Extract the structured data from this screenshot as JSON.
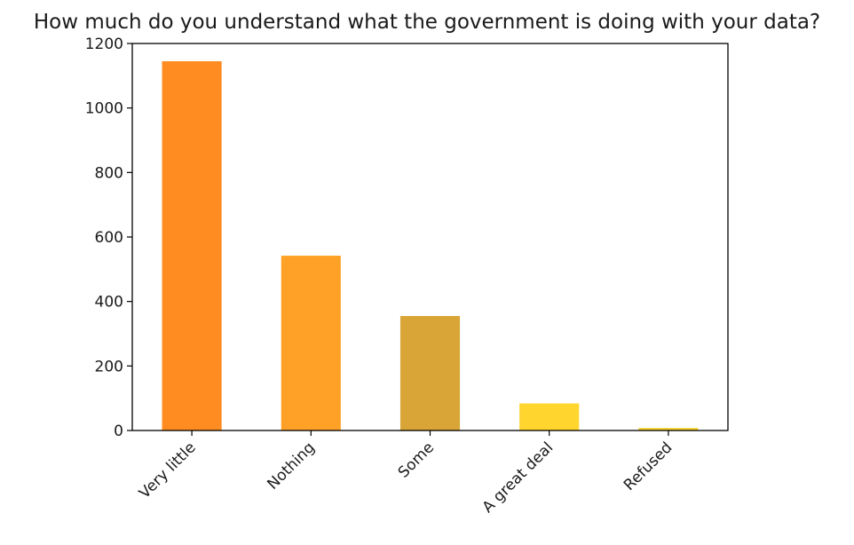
{
  "chart_data": {
    "type": "bar",
    "title": "How much do you understand what the government is doing with your data?",
    "xlabel": "",
    "ylabel": "",
    "categories": [
      "Very little",
      "Nothing",
      "Some",
      "A great deal",
      "Refused"
    ],
    "values": [
      1145,
      542,
      355,
      84,
      8
    ],
    "colors": [
      "#ff8c21",
      "#ffa126",
      "#d9a536",
      "#ffd52e",
      "#f2d12e"
    ],
    "ylim": [
      0,
      1200
    ],
    "yticks": [
      0,
      200,
      400,
      600,
      800,
      1000,
      1200
    ],
    "grid": false,
    "legend": "none"
  }
}
